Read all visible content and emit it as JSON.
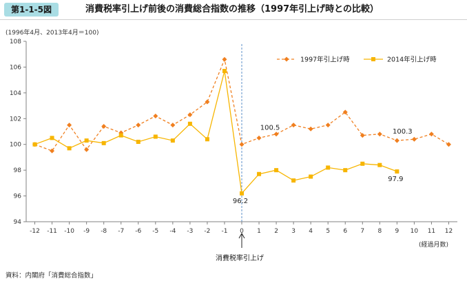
{
  "header": {
    "figure_tag": "第1-1-5図",
    "title": "消費税率引上げ前後の消費総合指数の推移（1997年引上げ時との比較）"
  },
  "base_note": "(1996年4月、2013年4月＝100)",
  "unit_note": "(経過月数)",
  "event_label": "消費税率引上げ",
  "source": "資料：内閣府「消費総合指数」",
  "colors": {
    "series_1997": "#f07f1f",
    "series_2014": "#f7b500",
    "axis": "#808080",
    "event_line": "#5b8fc9",
    "tag_bg": "#a9dde4"
  },
  "chart_data": {
    "type": "line",
    "x": [
      -12,
      -11,
      -10,
      -9,
      -8,
      -7,
      -6,
      -5,
      -4,
      -3,
      -2,
      -1,
      0,
      1,
      2,
      3,
      4,
      5,
      6,
      7,
      8,
      9,
      10,
      11,
      12
    ],
    "series": [
      {
        "name": "1997年引上げ時",
        "style": "dashed",
        "marker": "diamond",
        "color": "#f07f1f",
        "values": [
          100.0,
          99.5,
          101.5,
          99.6,
          101.4,
          100.9,
          101.5,
          102.2,
          101.5,
          102.3,
          103.3,
          106.6,
          100.0,
          100.5,
          100.8,
          101.5,
          101.2,
          101.5,
          102.5,
          100.7,
          100.8,
          100.3,
          100.4,
          100.8,
          100.0
        ]
      },
      {
        "name": "2014年引上げ時",
        "style": "solid",
        "marker": "square",
        "color": "#f7b500",
        "values": [
          100.0,
          100.5,
          99.7,
          100.3,
          100.1,
          100.7,
          100.2,
          100.6,
          100.3,
          101.6,
          100.4,
          105.7,
          96.2,
          97.7,
          98.0,
          97.2,
          97.5,
          98.2,
          98.0,
          98.5,
          98.4,
          97.9,
          null,
          null,
          null
        ]
      }
    ],
    "data_labels": [
      {
        "text": "100.5",
        "series": 0,
        "x": 1
      },
      {
        "text": "100.3",
        "series": 0,
        "x": 9
      },
      {
        "text": "96.2",
        "series": 1,
        "x": 0
      },
      {
        "text": "97.9",
        "series": 1,
        "x": 9
      }
    ],
    "ylim": [
      94,
      108
    ],
    "yticks": [
      94,
      96,
      98,
      100,
      102,
      104,
      106,
      108
    ],
    "xticks": [
      -12,
      -11,
      -10,
      -9,
      -8,
      -7,
      -6,
      -5,
      -4,
      -3,
      -2,
      -1,
      0,
      1,
      2,
      3,
      4,
      5,
      6,
      7,
      8,
      9,
      10,
      11,
      12
    ],
    "event_x": 0,
    "grid": false,
    "legend": "top-right"
  }
}
